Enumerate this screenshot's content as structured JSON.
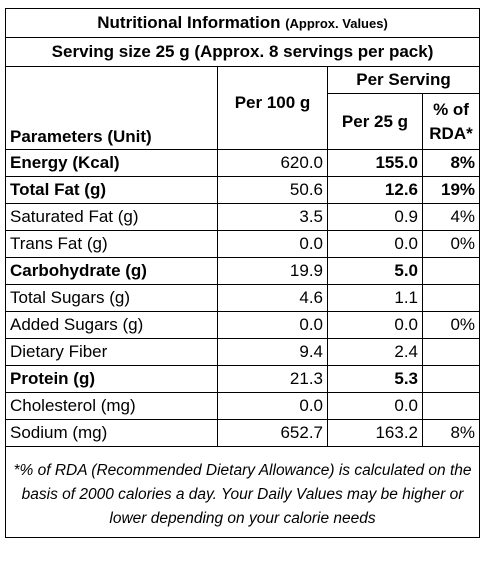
{
  "title": {
    "main": "Nutritional Information",
    "sub": "(Approx. Values)"
  },
  "serving_size": "Serving size 25 g (Approx. 8 servings per pack)",
  "headers": {
    "parameters": "Parameters (Unit)",
    "per_100g": "Per 100 g",
    "per_serving": "Per Serving",
    "per_25g": "Per 25 g",
    "rda": "% of RDA*"
  },
  "rows": [
    {
      "name": "Energy (Kcal)",
      "per100": "620.0",
      "per25": "155.0",
      "rda": "8%",
      "bold_name": true,
      "bold_values": true
    },
    {
      "name": "Total Fat (g)",
      "per100": "50.6",
      "per25": "12.6",
      "rda": "19%",
      "bold_name": true,
      "bold_values": true
    },
    {
      "name": "Saturated Fat (g)",
      "per100": "3.5",
      "per25": "0.9",
      "rda": "4%",
      "bold_name": false,
      "bold_values": false
    },
    {
      "name": "Trans Fat (g)",
      "per100": "0.0",
      "per25": "0.0",
      "rda": "0%",
      "bold_name": false,
      "bold_values": false
    },
    {
      "name": "Carbohydrate (g)",
      "per100": "19.9",
      "per25": "5.0",
      "rda": "",
      "bold_name": true,
      "bold_values": true
    },
    {
      "name": "Total Sugars (g)",
      "per100": "4.6",
      "per25": "1.1",
      "rda": "",
      "bold_name": false,
      "bold_values": false
    },
    {
      "name": "Added Sugars (g)",
      "per100": "0.0",
      "per25": "0.0",
      "rda": "0%",
      "bold_name": false,
      "bold_values": false
    },
    {
      "name": "Dietary Fiber",
      "per100": "9.4",
      "per25": "2.4",
      "rda": "",
      "bold_name": false,
      "bold_values": false
    },
    {
      "name": "Protein (g)",
      "per100": "21.3",
      "per25": "5.3",
      "rda": "",
      "bold_name": true,
      "bold_values": true
    },
    {
      "name": "Cholesterol (mg)",
      "per100": "0.0",
      "per25": "0.0",
      "rda": "",
      "bold_name": false,
      "bold_values": false
    },
    {
      "name": "Sodium (mg)",
      "per100": "652.7",
      "per25": "163.2",
      "rda": "8%",
      "bold_name": false,
      "bold_values": false
    }
  ],
  "footnote": "*% of RDA (Recommended Dietary Allowance) is calculated on the basis of 2000 calories a day. Your Daily Values may be higher or lower depending on your calorie needs"
}
